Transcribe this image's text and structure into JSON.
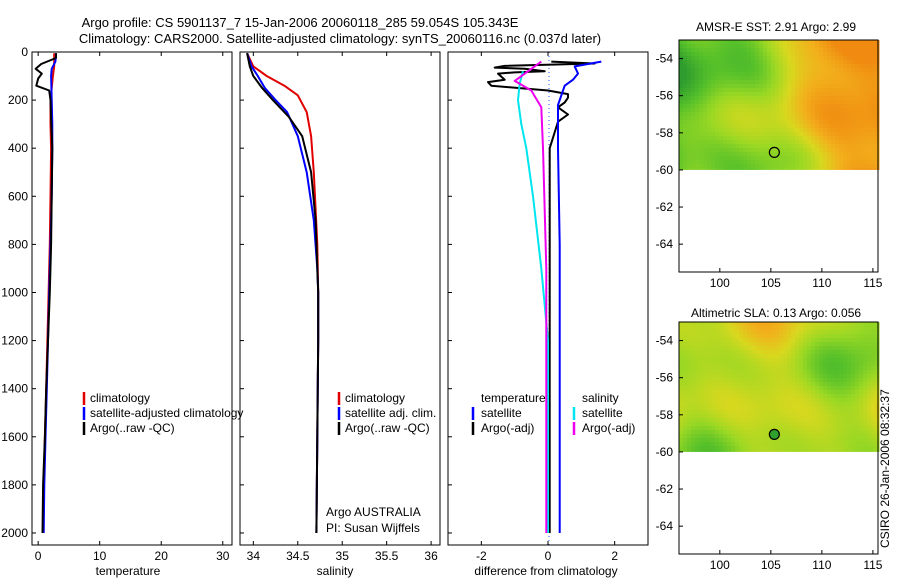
{
  "header": {
    "line1": "Argo profile: CS 5901137_7 15-Jan-2006 20060118_285 59.054S 105.343E",
    "line2": "Climatology: CARS2000. Satellite-adjusted climatology: synTS_20060116.nc (0.037d later)"
  },
  "credit": "CSIRO 26-Jan-2006 08:32:37",
  "colors": {
    "climatology": "#e00000",
    "satellite": "#0000ff",
    "argo": "#000000",
    "salinity_satellite": "#00e5ee",
    "salinity_argo": "#ee00ee"
  },
  "chart_data": [
    {
      "id": "temperature",
      "type": "line",
      "xlabel": "temperature",
      "ylabel": "",
      "xlim": [
        -1,
        31.5
      ],
      "ylim": [
        2050,
        0
      ],
      "xticks": [
        0,
        10,
        20,
        30
      ],
      "yticks": [
        0,
        200,
        400,
        600,
        800,
        1000,
        1200,
        1400,
        1600,
        1800,
        2000
      ],
      "legend": {
        "placement": "lower-right",
        "entries": [
          "climatology",
          "satellite-adjusted climatology",
          "Argo(..raw -QC)"
        ]
      },
      "series": [
        {
          "key": "climatology",
          "color": "#e00000",
          "points": [
            [
              2.6,
              5
            ],
            [
              2.6,
              60
            ],
            [
              2.4,
              100
            ],
            [
              2.0,
              200
            ],
            [
              2.0,
              300
            ],
            [
              2.1,
              400
            ],
            [
              2.0,
              600
            ],
            [
              1.9,
              800
            ],
            [
              1.7,
              1000
            ],
            [
              1.5,
              1200
            ],
            [
              1.3,
              1400
            ],
            [
              1.1,
              1600
            ],
            [
              0.9,
              1800
            ],
            [
              0.8,
              2000
            ]
          ]
        },
        {
          "key": "satellite",
          "color": "#0000ff",
          "points": [
            [
              2.9,
              5
            ],
            [
              2.8,
              40
            ],
            [
              2.2,
              70
            ],
            [
              2.1,
              100
            ],
            [
              2.2,
              200
            ],
            [
              2.3,
              300
            ],
            [
              2.3,
              400
            ],
            [
              2.2,
              600
            ],
            [
              2.0,
              800
            ],
            [
              1.8,
              1000
            ],
            [
              1.6,
              1200
            ],
            [
              1.4,
              1400
            ],
            [
              1.2,
              1600
            ],
            [
              1.0,
              1800
            ],
            [
              0.9,
              2000
            ]
          ]
        },
        {
          "key": "argo",
          "color": "#000000",
          "points": [
            [
              2.9,
              5
            ],
            [
              2.9,
              25
            ],
            [
              0.5,
              50
            ],
            [
              -0.4,
              70
            ],
            [
              0.6,
              90
            ],
            [
              0.0,
              110
            ],
            [
              -0.3,
              140
            ],
            [
              1.8,
              160
            ],
            [
              2.0,
              200
            ],
            [
              2.1,
              280
            ],
            [
              2.3,
              400
            ],
            [
              2.2,
              600
            ],
            [
              2.1,
              800
            ],
            [
              1.9,
              1000
            ],
            [
              1.6,
              1200
            ],
            [
              1.3,
              1400
            ],
            [
              1.1,
              1600
            ],
            [
              0.8,
              1800
            ],
            [
              0.7,
              2000
            ]
          ]
        }
      ]
    },
    {
      "id": "salinity",
      "type": "line",
      "xlabel": "salinity",
      "ylabel": "",
      "xlim": [
        33.85,
        36.1
      ],
      "ylim": [
        2050,
        0
      ],
      "xticks": [
        34,
        34.5,
        35,
        35.5,
        36
      ],
      "legend": {
        "placement": "lower-right",
        "entries": [
          "climatology",
          "satellite adj. clim.",
          "Argo(..raw -QC)"
        ]
      },
      "annotation": {
        "line1": "Argo AUSTRALIA",
        "line2": "PI: Susan Wijffels"
      },
      "series": [
        {
          "key": "climatology",
          "color": "#e00000",
          "points": [
            [
              33.93,
              5
            ],
            [
              34.0,
              60
            ],
            [
              34.15,
              100
            ],
            [
              34.35,
              140
            ],
            [
              34.5,
              180
            ],
            [
              34.6,
              250
            ],
            [
              34.65,
              350
            ],
            [
              34.68,
              500
            ],
            [
              34.72,
              800
            ],
            [
              34.73,
              1000
            ],
            [
              34.73,
              1200
            ],
            [
              34.72,
              1600
            ],
            [
              34.71,
              2000
            ]
          ]
        },
        {
          "key": "satellite",
          "color": "#0000ff",
          "points": [
            [
              33.93,
              5
            ],
            [
              33.98,
              60
            ],
            [
              34.05,
              100
            ],
            [
              34.13,
              150
            ],
            [
              34.25,
              200
            ],
            [
              34.38,
              250
            ],
            [
              34.5,
              350
            ],
            [
              34.6,
              500
            ],
            [
              34.68,
              700
            ],
            [
              34.72,
              900
            ],
            [
              34.73,
              1000
            ],
            [
              34.73,
              1200
            ],
            [
              34.72,
              1600
            ],
            [
              34.71,
              2000
            ]
          ]
        },
        {
          "key": "argo",
          "color": "#000000",
          "points": [
            [
              33.93,
              5
            ],
            [
              33.96,
              60
            ],
            [
              34.0,
              100
            ],
            [
              34.1,
              150
            ],
            [
              34.22,
              200
            ],
            [
              34.4,
              270
            ],
            [
              34.55,
              350
            ],
            [
              34.65,
              500
            ],
            [
              34.7,
              700
            ],
            [
              34.72,
              900
            ],
            [
              34.73,
              1000
            ],
            [
              34.73,
              1200
            ],
            [
              34.72,
              1600
            ],
            [
              34.71,
              2000
            ]
          ]
        }
      ]
    },
    {
      "id": "difference",
      "type": "line",
      "xlabel": "difference from climatology",
      "ylabel": "",
      "xlim": [
        -3,
        3
      ],
      "ylim": [
        2050,
        0
      ],
      "xticks": [
        -2,
        0,
        2
      ],
      "zero_line": true,
      "legend": {
        "placement": "lower-center",
        "columns": [
          {
            "heading": "temperature",
            "entries": [
              {
                "label": "satellite",
                "key": "satellite"
              },
              {
                "label": "Argo(-adj)",
                "key": "argo"
              }
            ]
          },
          {
            "heading": "salinity",
            "entries": [
              {
                "label": "satellite",
                "key": "salinity_satellite"
              },
              {
                "label": "Argo(-adj)",
                "key": "salinity_argo"
              }
            ]
          }
        ]
      },
      "series": [
        {
          "key": "argo",
          "color": "#000000",
          "points": [
            [
              0.1,
              40
            ],
            [
              1.4,
              48
            ],
            [
              -1.3,
              58
            ],
            [
              -1.6,
              65
            ],
            [
              -0.7,
              70
            ],
            [
              -0.1,
              80
            ],
            [
              -1.0,
              85
            ],
            [
              -1.5,
              90
            ],
            [
              -1.3,
              115
            ],
            [
              -1.8,
              125
            ],
            [
              -1.7,
              140
            ],
            [
              0.0,
              160
            ],
            [
              0.6,
              175
            ],
            [
              0.6,
              190
            ],
            [
              0.5,
              210
            ],
            [
              0.3,
              230
            ],
            [
              0.6,
              260
            ],
            [
              0.3,
              290
            ],
            [
              0.05,
              400
            ],
            [
              0.05,
              1000
            ],
            [
              0.05,
              2000
            ]
          ]
        },
        {
          "key": "satellite",
          "color": "#0000ff",
          "points": [
            [
              1.6,
              40
            ],
            [
              0.8,
              60
            ],
            [
              0.9,
              90
            ],
            [
              0.75,
              115
            ],
            [
              0.5,
              140
            ],
            [
              0.3,
              220
            ],
            [
              0.3,
              400
            ],
            [
              0.35,
              800
            ],
            [
              0.35,
              1500
            ],
            [
              0.35,
              2000
            ]
          ]
        },
        {
          "key": "salinity_satellite",
          "color": "#00e5ee",
          "points": [
            [
              -0.75,
              80
            ],
            [
              -0.85,
              130
            ],
            [
              -0.9,
              200
            ],
            [
              -0.8,
              300
            ],
            [
              -0.65,
              400
            ],
            [
              -0.45,
              600
            ],
            [
              -0.2,
              900
            ],
            [
              0.0,
              1200
            ],
            [
              0.0,
              2000
            ]
          ]
        },
        {
          "key": "salinity_argo",
          "color": "#ee00ee",
          "points": [
            [
              -0.2,
              40
            ],
            [
              -1.0,
              120
            ],
            [
              -0.5,
              160
            ],
            [
              -0.2,
              230
            ],
            [
              -0.15,
              400
            ],
            [
              -0.05,
              900
            ],
            [
              -0.05,
              1500
            ],
            [
              -0.05,
              2000
            ]
          ]
        }
      ]
    },
    {
      "id": "sst-map",
      "type": "heatmap",
      "title": "AMSR-E SST: 2.91 Argo: 2.99",
      "xlim": [
        96,
        115.5
      ],
      "ylim": [
        -65.5,
        -53
      ],
      "data_lat_min": -60,
      "xticks": [
        100,
        105,
        110,
        115
      ],
      "yticks": [
        -54,
        -56,
        -58,
        -60,
        -62,
        -64
      ],
      "marker": {
        "lon": 105.343,
        "lat": -59.054
      }
    },
    {
      "id": "sla-map",
      "type": "heatmap",
      "title": "Altimetric SLA: 0.13 Argo: 0.056",
      "xlim": [
        96,
        115.5
      ],
      "ylim": [
        -65.5,
        -53
      ],
      "data_lat_min": -60,
      "xticks": [
        100,
        105,
        110,
        115
      ],
      "yticks": [
        -54,
        -56,
        -58,
        -60,
        -62,
        -64
      ],
      "marker": {
        "lon": 105.343,
        "lat": -59.054
      }
    }
  ]
}
